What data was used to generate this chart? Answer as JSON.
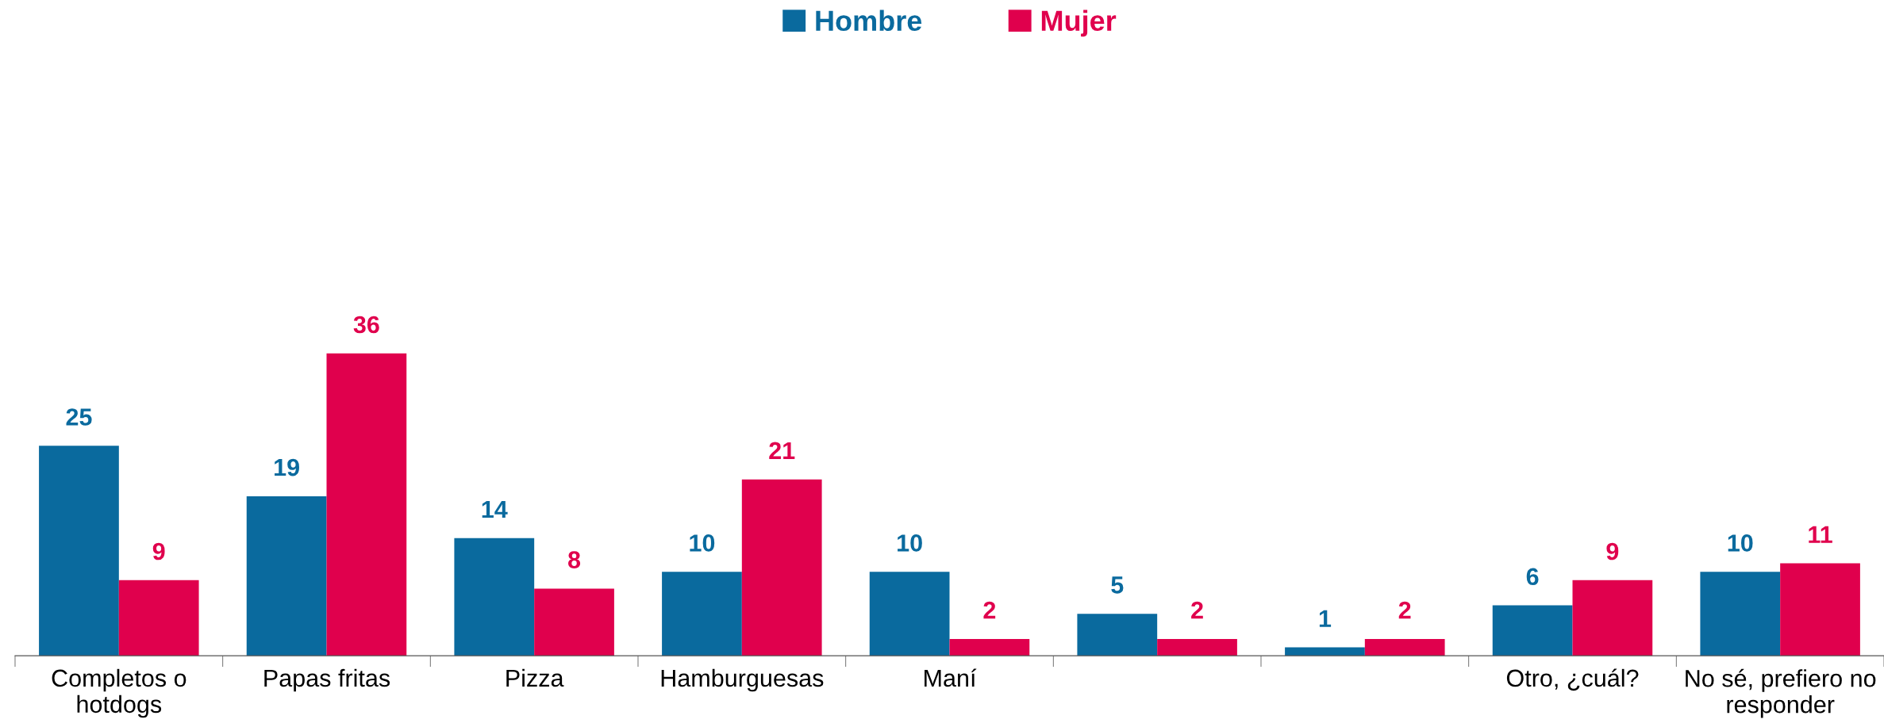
{
  "chart_data": {
    "type": "bar",
    "categories": [
      "Completos o\nhotdogs",
      "Papas fritas",
      "Pizza",
      "Hamburguesas",
      "Maní",
      null,
      null,
      "Otro, ¿cuál?",
      "No sé, prefiero no\nresponder"
    ],
    "series": [
      {
        "name": "Hombre",
        "color": "#0a6a9e",
        "values": [
          25,
          19,
          14,
          10,
          10,
          5,
          1,
          6,
          10
        ]
      },
      {
        "name": "Mujer",
        "color": "#e0004d",
        "values": [
          9,
          36,
          8,
          21,
          2,
          2,
          2,
          9,
          11
        ]
      }
    ],
    "data_labels": true,
    "legend": "top",
    "grid": false,
    "tick_labels": "x"
  }
}
